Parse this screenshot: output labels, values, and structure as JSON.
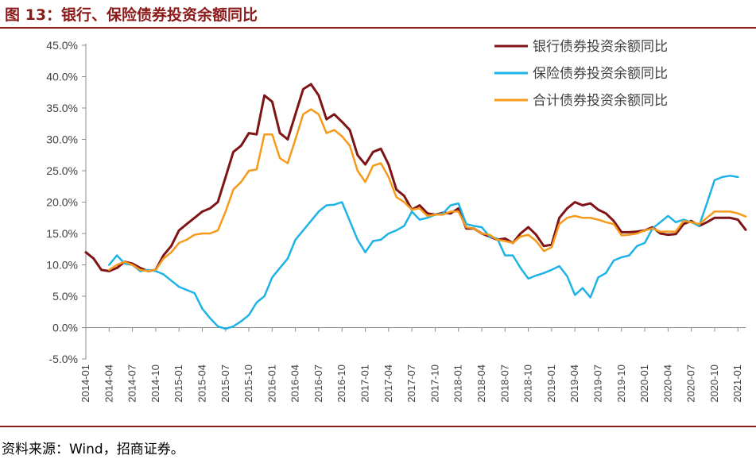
{
  "header": {
    "title": "图 13：银行、保险债券投资余额同比"
  },
  "footer": {
    "source": "资料来源：Wind，招商证券。"
  },
  "chart_data": {
    "type": "line",
    "title": "",
    "xlabel": "",
    "ylabel": "",
    "ylim": [
      -5,
      45
    ],
    "yticks": [
      "-5.0%",
      "0.0%",
      "5.0%",
      "10.0%",
      "15.0%",
      "20.0%",
      "25.0%",
      "30.0%",
      "35.0%",
      "40.0%",
      "45.0%"
    ],
    "xticks": [
      "2014-01",
      "2014-04",
      "2014-07",
      "2014-10",
      "2015-01",
      "2015-04",
      "2015-07",
      "2015-10",
      "2016-01",
      "2016-04",
      "2016-07",
      "2016-10",
      "2017-01",
      "2017-04",
      "2017-07",
      "2017-10",
      "2018-01",
      "2018-04",
      "2018-07",
      "2018-10",
      "2019-01",
      "2019-04",
      "2019-07",
      "2019-10",
      "2020-01",
      "2020-04",
      "2020-07",
      "2020-10",
      "2021-01"
    ],
    "grid": false,
    "legend": "top-right",
    "series": [
      {
        "name": "银行债券投资余额同比",
        "color": "#7f1416",
        "points": [
          [
            "2014-01",
            12.0
          ],
          [
            "2014-02",
            11.0
          ],
          [
            "2014-03",
            9.2
          ],
          [
            "2014-04",
            9.0
          ],
          [
            "2014-05",
            9.5
          ],
          [
            "2014-06",
            10.5
          ],
          [
            "2014-07",
            10.2
          ],
          [
            "2014-08",
            9.5
          ],
          [
            "2014-09",
            9.0
          ],
          [
            "2014-10",
            9.2
          ],
          [
            "2014-11",
            11.5
          ],
          [
            "2014-12",
            13.0
          ],
          [
            "2015-01",
            15.5
          ],
          [
            "2015-02",
            16.5
          ],
          [
            "2015-03",
            17.5
          ],
          [
            "2015-04",
            18.5
          ],
          [
            "2015-05",
            19.0
          ],
          [
            "2015-06",
            20.0
          ],
          [
            "2015-07",
            24.0
          ],
          [
            "2015-08",
            28.0
          ],
          [
            "2015-09",
            29.0
          ],
          [
            "2015-10",
            31.0
          ],
          [
            "2015-11",
            30.8
          ],
          [
            "2015-12",
            37.0
          ],
          [
            "2016-01",
            36.0
          ],
          [
            "2016-02",
            31.0
          ],
          [
            "2016-03",
            30.0
          ],
          [
            "2016-04",
            34.0
          ],
          [
            "2016-05",
            38.0
          ],
          [
            "2016-06",
            38.8
          ],
          [
            "2016-07",
            37.0
          ],
          [
            "2016-08",
            33.2
          ],
          [
            "2016-09",
            34.0
          ],
          [
            "2016-10",
            32.8
          ],
          [
            "2016-11",
            31.5
          ],
          [
            "2016-12",
            27.5
          ],
          [
            "2017-01",
            26.0
          ],
          [
            "2017-02",
            28.0
          ],
          [
            "2017-03",
            28.5
          ],
          [
            "2017-04",
            26.0
          ],
          [
            "2017-05",
            22.0
          ],
          [
            "2017-06",
            21.0
          ],
          [
            "2017-07",
            18.8
          ],
          [
            "2017-08",
            19.5
          ],
          [
            "2017-09",
            18.2
          ],
          [
            "2017-10",
            18.0
          ],
          [
            "2017-11",
            18.3
          ],
          [
            "2017-12",
            18.2
          ],
          [
            "2018-01",
            19.0
          ],
          [
            "2018-02",
            15.8
          ],
          [
            "2018-03",
            15.8
          ],
          [
            "2018-04",
            15.0
          ],
          [
            "2018-05",
            14.5
          ],
          [
            "2018-06",
            14.0
          ],
          [
            "2018-07",
            14.2
          ],
          [
            "2018-08",
            13.5
          ],
          [
            "2018-09",
            15.0
          ],
          [
            "2018-10",
            16.0
          ],
          [
            "2018-11",
            14.8
          ],
          [
            "2018-12",
            13.0
          ],
          [
            "2019-01",
            13.2
          ],
          [
            "2019-02",
            17.5
          ],
          [
            "2019-03",
            19.0
          ],
          [
            "2019-04",
            20.0
          ],
          [
            "2019-05",
            19.5
          ],
          [
            "2019-06",
            19.8
          ],
          [
            "2019-07",
            18.8
          ],
          [
            "2019-08",
            18.2
          ],
          [
            "2019-09",
            17.0
          ],
          [
            "2019-10",
            15.2
          ],
          [
            "2019-11",
            15.2
          ],
          [
            "2019-12",
            15.3
          ],
          [
            "2020-01",
            15.5
          ],
          [
            "2020-02",
            16.0
          ],
          [
            "2020-03",
            15.0
          ],
          [
            "2020-04",
            14.8
          ],
          [
            "2020-05",
            14.9
          ],
          [
            "2020-06",
            16.5
          ],
          [
            "2020-07",
            17.0
          ],
          [
            "2020-08",
            16.2
          ],
          [
            "2020-09",
            16.8
          ],
          [
            "2020-10",
            17.5
          ],
          [
            "2020-11",
            17.5
          ],
          [
            "2020-12",
            17.5
          ],
          [
            "2021-01",
            17.2
          ],
          [
            "2021-02",
            15.6
          ]
        ]
      },
      {
        "name": "保险债券投资余额同比",
        "color": "#1fb2e6",
        "points": [
          [
            "2014-04",
            10.0
          ],
          [
            "2014-05",
            11.5
          ],
          [
            "2014-06",
            10.2
          ],
          [
            "2014-07",
            10.0
          ],
          [
            "2014-08",
            9.0
          ],
          [
            "2014-09",
            9.2
          ],
          [
            "2014-10",
            9.0
          ],
          [
            "2014-11",
            8.5
          ],
          [
            "2014-12",
            7.5
          ],
          [
            "2015-01",
            6.5
          ],
          [
            "2015-02",
            6.0
          ],
          [
            "2015-03",
            5.5
          ],
          [
            "2015-04",
            3.0
          ],
          [
            "2015-05",
            1.5
          ],
          [
            "2015-06",
            0.2
          ],
          [
            "2015-07",
            -0.2
          ],
          [
            "2015-08",
            0.2
          ],
          [
            "2015-09",
            1.0
          ],
          [
            "2015-10",
            2.0
          ],
          [
            "2015-11",
            4.0
          ],
          [
            "2015-12",
            5.0
          ],
          [
            "2016-01",
            8.0
          ],
          [
            "2016-02",
            9.5
          ],
          [
            "2016-03",
            11.0
          ],
          [
            "2016-04",
            14.0
          ],
          [
            "2016-05",
            15.5
          ],
          [
            "2016-06",
            17.0
          ],
          [
            "2016-07",
            18.5
          ],
          [
            "2016-08",
            19.5
          ],
          [
            "2016-09",
            19.6
          ],
          [
            "2016-10",
            20.0
          ],
          [
            "2016-11",
            17.0
          ],
          [
            "2016-12",
            14.0
          ],
          [
            "2017-01",
            12.0
          ],
          [
            "2017-02",
            13.8
          ],
          [
            "2017-03",
            14.0
          ],
          [
            "2017-04",
            15.0
          ],
          [
            "2017-05",
            15.5
          ],
          [
            "2017-06",
            16.2
          ],
          [
            "2017-07",
            18.5
          ],
          [
            "2017-08",
            17.2
          ],
          [
            "2017-09",
            17.5
          ],
          [
            "2017-10",
            18.0
          ],
          [
            "2017-11",
            18.2
          ],
          [
            "2017-12",
            19.5
          ],
          [
            "2018-01",
            19.8
          ],
          [
            "2018-02",
            16.5
          ],
          [
            "2018-03",
            16.2
          ],
          [
            "2018-04",
            16.0
          ],
          [
            "2018-05",
            14.5
          ],
          [
            "2018-06",
            14.2
          ],
          [
            "2018-07",
            11.5
          ],
          [
            "2018-08",
            11.5
          ],
          [
            "2018-09",
            9.5
          ],
          [
            "2018-10",
            7.8
          ],
          [
            "2018-11",
            8.3
          ],
          [
            "2018-12",
            8.7
          ],
          [
            "2019-01",
            9.2
          ],
          [
            "2019-02",
            9.8
          ],
          [
            "2019-03",
            8.2
          ],
          [
            "2019-04",
            5.2
          ],
          [
            "2019-05",
            6.3
          ],
          [
            "2019-06",
            4.8
          ],
          [
            "2019-07",
            8.0
          ],
          [
            "2019-08",
            8.7
          ],
          [
            "2019-09",
            10.7
          ],
          [
            "2019-10",
            11.2
          ],
          [
            "2019-11",
            11.5
          ],
          [
            "2019-12",
            13.0
          ],
          [
            "2020-01",
            13.5
          ],
          [
            "2020-02",
            15.8
          ],
          [
            "2020-03",
            16.8
          ],
          [
            "2020-04",
            17.8
          ],
          [
            "2020-05",
            16.8
          ],
          [
            "2020-06",
            17.2
          ],
          [
            "2020-07",
            16.8
          ],
          [
            "2020-08",
            16.2
          ],
          [
            "2020-09",
            19.8
          ],
          [
            "2020-10",
            23.5
          ],
          [
            "2020-11",
            24.0
          ],
          [
            "2020-12",
            24.2
          ],
          [
            "2021-01",
            24.0
          ]
        ]
      },
      {
        "name": "合计债券投资余额同比",
        "color": "#f59a1a",
        "points": [
          [
            "2014-04",
            9.2
          ],
          [
            "2014-05",
            10.0
          ],
          [
            "2014-06",
            10.5
          ],
          [
            "2014-07",
            10.0
          ],
          [
            "2014-08",
            9.2
          ],
          [
            "2014-09",
            9.0
          ],
          [
            "2014-10",
            9.2
          ],
          [
            "2014-11",
            11.0
          ],
          [
            "2014-12",
            12.0
          ],
          [
            "2015-01",
            13.5
          ],
          [
            "2015-02",
            14.0
          ],
          [
            "2015-03",
            14.8
          ],
          [
            "2015-04",
            15.0
          ],
          [
            "2015-05",
            15.0
          ],
          [
            "2015-06",
            15.5
          ],
          [
            "2015-07",
            18.5
          ],
          [
            "2015-08",
            22.0
          ],
          [
            "2015-09",
            23.2
          ],
          [
            "2015-10",
            25.0
          ],
          [
            "2015-11",
            25.2
          ],
          [
            "2015-12",
            30.8
          ],
          [
            "2016-01",
            30.8
          ],
          [
            "2016-02",
            27.0
          ],
          [
            "2016-03",
            26.2
          ],
          [
            "2016-04",
            30.0
          ],
          [
            "2016-05",
            34.0
          ],
          [
            "2016-06",
            34.8
          ],
          [
            "2016-07",
            34.0
          ],
          [
            "2016-08",
            31.0
          ],
          [
            "2016-09",
            31.5
          ],
          [
            "2016-10",
            30.5
          ],
          [
            "2016-11",
            29.0
          ],
          [
            "2016-12",
            25.0
          ],
          [
            "2017-01",
            23.2
          ],
          [
            "2017-02",
            25.8
          ],
          [
            "2017-03",
            26.2
          ],
          [
            "2017-04",
            24.0
          ],
          [
            "2017-05",
            20.8
          ],
          [
            "2017-06",
            20.0
          ],
          [
            "2017-07",
            18.8
          ],
          [
            "2017-08",
            19.0
          ],
          [
            "2017-09",
            17.8
          ],
          [
            "2017-10",
            18.0
          ],
          [
            "2017-11",
            18.0
          ],
          [
            "2017-12",
            18.5
          ],
          [
            "2018-01",
            18.5
          ],
          [
            "2018-02",
            16.0
          ],
          [
            "2018-03",
            15.8
          ],
          [
            "2018-04",
            15.0
          ],
          [
            "2018-05",
            14.8
          ],
          [
            "2018-06",
            14.0
          ],
          [
            "2018-07",
            13.8
          ],
          [
            "2018-08",
            13.5
          ],
          [
            "2018-09",
            14.5
          ],
          [
            "2018-10",
            14.8
          ],
          [
            "2018-11",
            13.8
          ],
          [
            "2018-12",
            12.2
          ],
          [
            "2019-01",
            12.8
          ],
          [
            "2019-02",
            16.5
          ],
          [
            "2019-03",
            17.5
          ],
          [
            "2019-04",
            17.8
          ],
          [
            "2019-05",
            17.5
          ],
          [
            "2019-06",
            17.5
          ],
          [
            "2019-07",
            17.2
          ],
          [
            "2019-08",
            16.8
          ],
          [
            "2019-09",
            16.5
          ],
          [
            "2019-10",
            14.7
          ],
          [
            "2019-11",
            14.8
          ],
          [
            "2019-12",
            15.0
          ],
          [
            "2020-01",
            15.5
          ],
          [
            "2020-02",
            15.8
          ],
          [
            "2020-03",
            15.3
          ],
          [
            "2020-04",
            15.3
          ],
          [
            "2020-05",
            15.3
          ],
          [
            "2020-06",
            17.0
          ],
          [
            "2020-07",
            16.8
          ],
          [
            "2020-08",
            16.5
          ],
          [
            "2020-09",
            17.5
          ],
          [
            "2020-10",
            18.5
          ],
          [
            "2020-11",
            18.5
          ],
          [
            "2020-12",
            18.5
          ],
          [
            "2021-01",
            18.2
          ],
          [
            "2021-02",
            17.7
          ]
        ]
      }
    ]
  }
}
